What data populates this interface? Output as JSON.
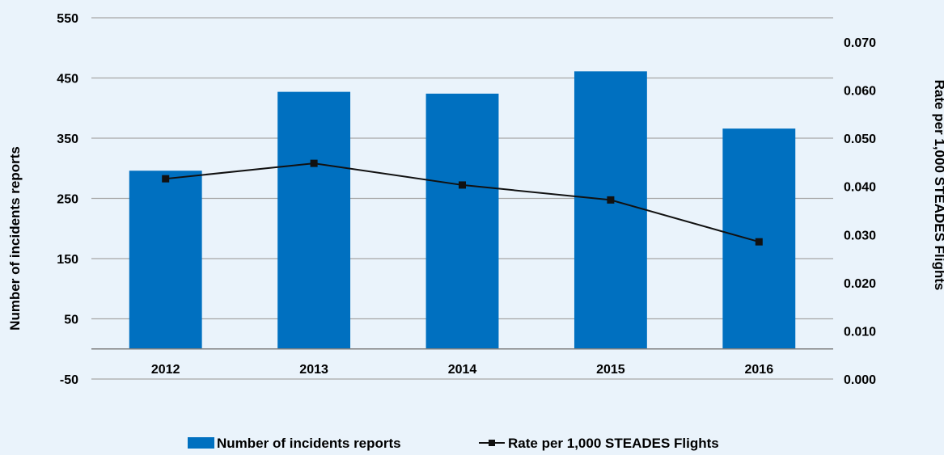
{
  "chart_data": {
    "type": "bar",
    "categories": [
      "2012",
      "2013",
      "2014",
      "2015",
      "2016"
    ],
    "series": [
      {
        "name": "Number of incidents reports",
        "type": "bar",
        "axis": "left",
        "color": "#0070c0",
        "values": [
          296,
          427,
          424,
          461,
          366
        ]
      },
      {
        "name": "Rate per 1,000 STEADES Flights",
        "type": "line",
        "axis": "right",
        "color": "#111111",
        "marker": "square",
        "values": [
          0.0416,
          0.0448,
          0.0403,
          0.0372,
          0.0285
        ]
      }
    ],
    "ylabel_left": "Number of incidents reports",
    "ylabel_right": "Rate per 1,000 STEADES Flights",
    "ylim_left": [
      -50,
      550
    ],
    "yticks_left": [
      "-50",
      "50",
      "150",
      "250",
      "350",
      "450",
      "550"
    ],
    "ylim_right": [
      0,
      0.07
    ],
    "yticks_right": [
      "0.000",
      "0.010",
      "0.020",
      "0.030",
      "0.040",
      "0.050",
      "0.060",
      "0.070"
    ],
    "grid": true,
    "legend_position": "bottom"
  }
}
